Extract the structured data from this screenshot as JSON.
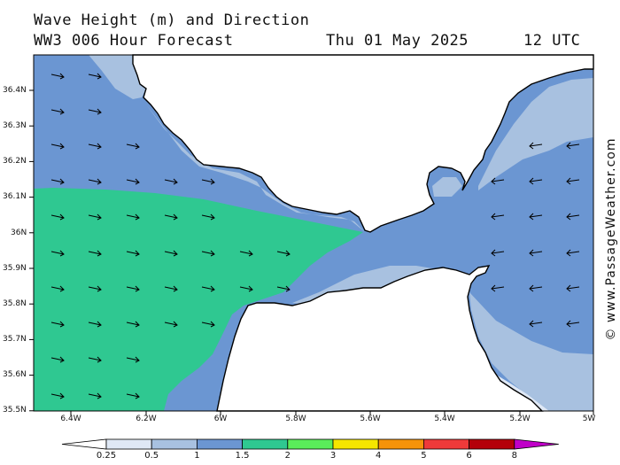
{
  "title": {
    "line1": "Wave Height (m) and Direction",
    "model": "WW3 006 Hour Forecast",
    "date": "Thu 01 May 2025",
    "time": "12 UTC"
  },
  "axes": {
    "y_labels": [
      "36.4N",
      "36.3N",
      "36.2N",
      "36.1N",
      "36N",
      "35.9N",
      "35.8N",
      "35.7N",
      "35.6N",
      "35.5N"
    ],
    "x_labels": [
      "6.4W",
      "6.2W",
      "6W",
      "5.8W",
      "5.6W",
      "5.4W",
      "5.2W",
      "5W"
    ],
    "lat_range": [
      35.5,
      36.5
    ],
    "lon_range": [
      -6.5,
      -5.0
    ]
  },
  "legend": {
    "labels": [
      "0.25",
      "0.5",
      "1",
      "1.5",
      "2",
      "3",
      "4",
      "5",
      "6",
      "8"
    ],
    "colors": [
      "#dfe8f5",
      "#a8c1e0",
      "#6b96d2",
      "#2fc891",
      "#5aec5a",
      "#f5e600",
      "#f5930a",
      "#ee3a3a",
      "#b4000a",
      "#c000c8"
    ]
  },
  "colors": {
    "band_0_5": "#a8c1e0",
    "band_1": "#6b96d2",
    "band_1_5": "#2fc891",
    "band_0_25": "#dfe8f5",
    "land": "#ffffff",
    "coast": "#000000"
  },
  "arrows": {
    "west_direction": "east-southeast",
    "east_direction": "west"
  },
  "copyright": "© www.PassageWeather.com"
}
